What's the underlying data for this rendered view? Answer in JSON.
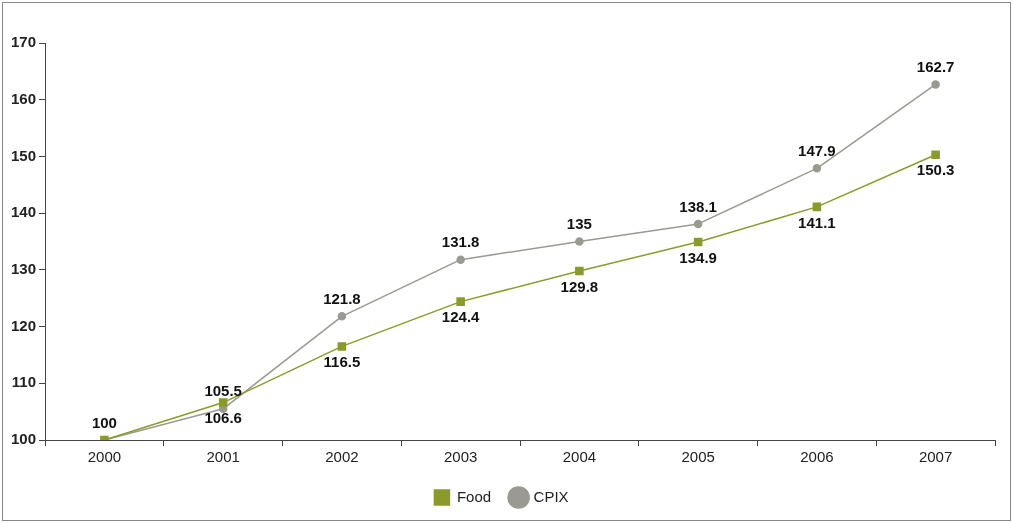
{
  "chart_data": {
    "type": "line",
    "categories": [
      "2000",
      "2001",
      "2002",
      "2003",
      "2004",
      "2005",
      "2006",
      "2007"
    ],
    "series": [
      {
        "name": "Food",
        "color": "#8c9a2c",
        "marker": "square",
        "values": [
          100,
          106.6,
          116.5,
          124.4,
          129.8,
          134.9,
          141.1,
          150.3
        ],
        "value_labels": [
          null,
          "106.6",
          "116.5",
          "124.4",
          "129.8",
          "134.9",
          "141.1",
          "150.3"
        ]
      },
      {
        "name": "CPIX",
        "color": "#9a9a92",
        "marker": "circle",
        "values": [
          100,
          105.5,
          121.8,
          131.8,
          135,
          138.1,
          147.9,
          162.7
        ],
        "value_labels": [
          "100",
          "105.5",
          "121.8",
          "131.8",
          "135",
          "138.1",
          "147.9",
          "162.7"
        ]
      }
    ],
    "ylim": [
      100,
      170
    ],
    "yticks": [
      100,
      110,
      120,
      130,
      140,
      150,
      160,
      170
    ],
    "grid": false,
    "legend": "bottom",
    "line_style": "solid"
  }
}
